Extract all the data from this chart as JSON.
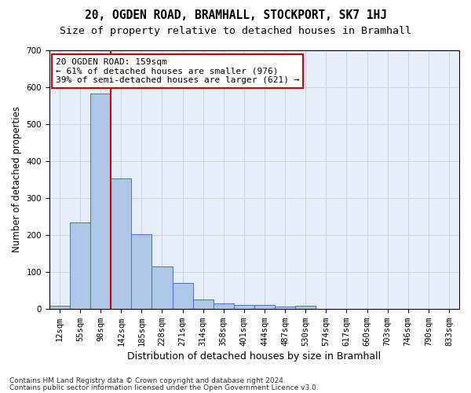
{
  "title1": "20, OGDEN ROAD, BRAMHALL, STOCKPORT, SK7 1HJ",
  "title2": "Size of property relative to detached houses in Bramhall",
  "xlabel": "Distribution of detached houses by size in Bramhall",
  "ylabel": "Number of detached properties",
  "bar_values": [
    8,
    234,
    582,
    352,
    202,
    115,
    70,
    25,
    15,
    10,
    10,
    5,
    8,
    0,
    0,
    0,
    0,
    0,
    0,
    0
  ],
  "bar_labels": [
    "12sqm",
    "55sqm",
    "98sqm",
    "142sqm",
    "185sqm",
    "228sqm",
    "271sqm",
    "314sqm",
    "358sqm",
    "401sqm",
    "444sqm",
    "487sqm",
    "530sqm",
    "574sqm",
    "617sqm",
    "660sqm",
    "703sqm",
    "746sqm",
    "790sqm",
    "833sqm"
  ],
  "bar_color": "#aec6e8",
  "bar_edge_color": "#4472c4",
  "vline_color": "#cc0000",
  "annotation_text": "20 OGDEN ROAD: 159sqm\n← 61% of detached houses are smaller (976)\n39% of semi-detached houses are larger (621) →",
  "annotation_box_color": "#ffffff",
  "annotation_box_edge": "#cc0000",
  "ylim": [
    0,
    700
  ],
  "yticks": [
    0,
    100,
    200,
    300,
    400,
    500,
    600,
    700
  ],
  "grid_color": "#c8d4e8",
  "background_color": "#e8eef8",
  "footer1": "Contains HM Land Registry data © Crown copyright and database right 2024.",
  "footer2": "Contains public sector information licensed under the Open Government Licence v3.0.",
  "title1_fontsize": 10.5,
  "title2_fontsize": 9.5,
  "xlabel_fontsize": 9,
  "ylabel_fontsize": 8.5,
  "tick_fontsize": 7.5,
  "annotation_fontsize": 8,
  "footer_fontsize": 6.5
}
